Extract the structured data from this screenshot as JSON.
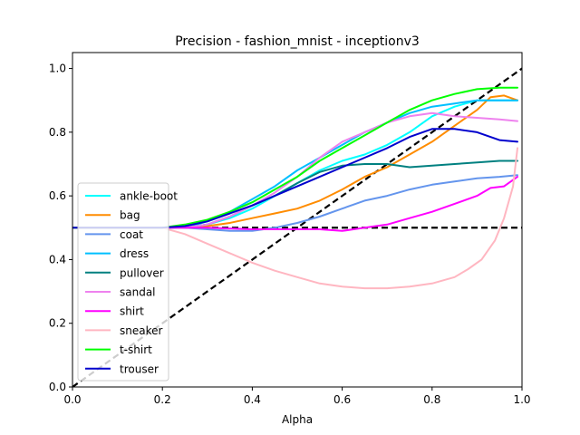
{
  "chart_data": {
    "type": "line",
    "title": "Precision - fashion_mnist - inceptionv3",
    "xlabel": "Alpha",
    "ylabel": "",
    "xlim": [
      0,
      1
    ],
    "ylim": [
      0,
      1.05
    ],
    "xticks": [
      0.0,
      0.2,
      0.4,
      0.6,
      0.8,
      1.0
    ],
    "yticks": [
      0.0,
      0.2,
      0.4,
      0.6,
      0.8,
      1.0
    ],
    "xtick_labels": [
      "0.0",
      "0.2",
      "0.4",
      "0.6",
      "0.8",
      "1.0"
    ],
    "ytick_labels": [
      "0.0",
      "0.2",
      "0.4",
      "0.6",
      "0.8",
      "1.0"
    ],
    "grid": false,
    "legend_position": "center-left",
    "reference_lines": [
      {
        "kind": "diagonal",
        "x": [
          0,
          1
        ],
        "y": [
          0,
          1
        ],
        "color": "#000000",
        "style": "dashed"
      },
      {
        "kind": "horizontal",
        "x": [
          0,
          1
        ],
        "y": [
          0.5,
          0.5
        ],
        "color": "#000000",
        "style": "dashed"
      }
    ],
    "series": [
      {
        "name": "ankle-boot",
        "color": "#00ffff",
        "x": [
          0,
          0.2,
          0.25,
          0.3,
          0.35,
          0.4,
          0.45,
          0.5,
          0.55,
          0.6,
          0.65,
          0.7,
          0.75,
          0.8,
          0.85,
          0.9,
          0.95,
          0.99
        ],
        "y": [
          0.5,
          0.5,
          0.5,
          0.51,
          0.53,
          0.56,
          0.6,
          0.64,
          0.68,
          0.71,
          0.73,
          0.76,
          0.8,
          0.85,
          0.88,
          0.9,
          0.9,
          0.9
        ]
      },
      {
        "name": "bag",
        "color": "#ff8c00",
        "x": [
          0,
          0.2,
          0.25,
          0.3,
          0.35,
          0.4,
          0.45,
          0.5,
          0.55,
          0.6,
          0.65,
          0.7,
          0.75,
          0.8,
          0.85,
          0.9,
          0.93,
          0.96,
          0.99
        ],
        "y": [
          0.5,
          0.5,
          0.5,
          0.505,
          0.515,
          0.53,
          0.545,
          0.56,
          0.585,
          0.62,
          0.66,
          0.69,
          0.73,
          0.77,
          0.82,
          0.87,
          0.91,
          0.915,
          0.9
        ]
      },
      {
        "name": "coat",
        "color": "#6495ed",
        "x": [
          0,
          0.2,
          0.25,
          0.3,
          0.35,
          0.4,
          0.45,
          0.5,
          0.55,
          0.6,
          0.65,
          0.7,
          0.75,
          0.8,
          0.85,
          0.9,
          0.95,
          0.99
        ],
        "y": [
          0.5,
          0.5,
          0.5,
          0.495,
          0.49,
          0.49,
          0.5,
          0.515,
          0.535,
          0.56,
          0.585,
          0.6,
          0.62,
          0.635,
          0.645,
          0.655,
          0.66,
          0.665
        ]
      },
      {
        "name": "dress",
        "color": "#00bfff",
        "x": [
          0,
          0.2,
          0.25,
          0.3,
          0.35,
          0.4,
          0.45,
          0.5,
          0.55,
          0.6,
          0.65,
          0.7,
          0.75,
          0.8,
          0.85,
          0.9,
          0.95,
          0.99
        ],
        "y": [
          0.5,
          0.5,
          0.5,
          0.52,
          0.55,
          0.59,
          0.63,
          0.68,
          0.72,
          0.76,
          0.8,
          0.83,
          0.86,
          0.88,
          0.89,
          0.9,
          0.9,
          0.9
        ]
      },
      {
        "name": "pullover",
        "color": "#008080",
        "x": [
          0,
          0.2,
          0.25,
          0.3,
          0.35,
          0.4,
          0.45,
          0.5,
          0.55,
          0.6,
          0.65,
          0.7,
          0.75,
          0.8,
          0.85,
          0.9,
          0.95,
          0.99
        ],
        "y": [
          0.5,
          0.5,
          0.5,
          0.51,
          0.535,
          0.57,
          0.6,
          0.64,
          0.675,
          0.695,
          0.7,
          0.7,
          0.69,
          0.695,
          0.7,
          0.705,
          0.71,
          0.71
        ]
      },
      {
        "name": "sandal",
        "color": "#ee82ee",
        "x": [
          0,
          0.2,
          0.25,
          0.3,
          0.35,
          0.4,
          0.45,
          0.5,
          0.55,
          0.6,
          0.65,
          0.7,
          0.75,
          0.8,
          0.85,
          0.9,
          0.95,
          0.99
        ],
        "y": [
          0.5,
          0.5,
          0.5,
          0.51,
          0.535,
          0.57,
          0.61,
          0.66,
          0.72,
          0.77,
          0.8,
          0.83,
          0.85,
          0.86,
          0.85,
          0.845,
          0.84,
          0.835
        ]
      },
      {
        "name": "shirt",
        "color": "#ff00ff",
        "x": [
          0,
          0.2,
          0.3,
          0.4,
          0.5,
          0.55,
          0.6,
          0.65,
          0.7,
          0.75,
          0.8,
          0.85,
          0.9,
          0.93,
          0.96,
          0.99
        ],
        "y": [
          0.5,
          0.5,
          0.5,
          0.495,
          0.495,
          0.495,
          0.49,
          0.5,
          0.51,
          0.53,
          0.55,
          0.575,
          0.6,
          0.625,
          0.63,
          0.66
        ]
      },
      {
        "name": "sneaker",
        "color": "#ffb6c1",
        "x": [
          0,
          0.2,
          0.25,
          0.3,
          0.35,
          0.4,
          0.45,
          0.5,
          0.55,
          0.6,
          0.65,
          0.7,
          0.75,
          0.8,
          0.85,
          0.88,
          0.91,
          0.94,
          0.96,
          0.98,
          0.99
        ],
        "y": [
          0.5,
          0.5,
          0.48,
          0.45,
          0.42,
          0.39,
          0.365,
          0.345,
          0.325,
          0.315,
          0.31,
          0.31,
          0.315,
          0.325,
          0.345,
          0.37,
          0.4,
          0.46,
          0.53,
          0.63,
          0.75
        ]
      },
      {
        "name": "t-shirt",
        "color": "#00ff00",
        "x": [
          0,
          0.2,
          0.25,
          0.3,
          0.35,
          0.4,
          0.45,
          0.5,
          0.55,
          0.6,
          0.65,
          0.7,
          0.75,
          0.8,
          0.85,
          0.9,
          0.95,
          0.99
        ],
        "y": [
          0.5,
          0.5,
          0.51,
          0.525,
          0.55,
          0.58,
          0.62,
          0.66,
          0.71,
          0.75,
          0.79,
          0.83,
          0.87,
          0.9,
          0.92,
          0.935,
          0.94,
          0.94
        ]
      },
      {
        "name": "trouser",
        "color": "#0000cd",
        "x": [
          0,
          0.2,
          0.25,
          0.3,
          0.35,
          0.4,
          0.45,
          0.5,
          0.55,
          0.6,
          0.65,
          0.7,
          0.75,
          0.8,
          0.85,
          0.9,
          0.95,
          0.99
        ],
        "y": [
          0.5,
          0.5,
          0.505,
          0.52,
          0.545,
          0.57,
          0.6,
          0.63,
          0.66,
          0.69,
          0.72,
          0.75,
          0.785,
          0.81,
          0.81,
          0.8,
          0.775,
          0.77
        ]
      }
    ]
  }
}
